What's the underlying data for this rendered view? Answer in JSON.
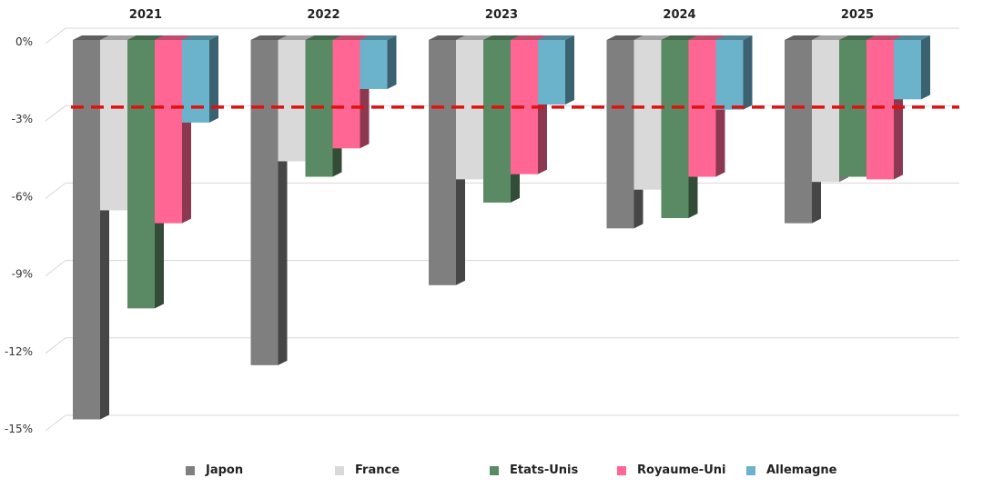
{
  "chart_data": {
    "type": "bar",
    "categories": [
      "2021",
      "2022",
      "2023",
      "2024",
      "2025"
    ],
    "series": [
      {
        "name": "Japon",
        "color": "#7f7f7f",
        "values": [
          -14.7,
          -12.6,
          -9.5,
          -7.3,
          -7.1
        ]
      },
      {
        "name": "France",
        "color": "#d9d9d9",
        "values": [
          -6.6,
          -4.7,
          -5.4,
          -5.8,
          -5.5
        ]
      },
      {
        "name": "Etats-Unis",
        "color": "#5a8a64",
        "values": [
          -10.4,
          -5.3,
          -6.3,
          -6.9,
          -5.3
        ]
      },
      {
        "name": "Royaume-Uni",
        "color": "#ff6693",
        "values": [
          -7.1,
          -4.2,
          -5.2,
          -5.3,
          -5.4
        ]
      },
      {
        "name": "Allemagne",
        "color": "#6bb3cb",
        "values": [
          -3.2,
          -1.9,
          -2.5,
          -2.7,
          -2.3
        ]
      }
    ],
    "reference_line": {
      "value": -2.6,
      "color": "#e01010",
      "style": "dashed"
    },
    "ylim": [
      -15,
      0
    ],
    "yticks": [
      0,
      -3,
      -6,
      -9,
      -12,
      -15
    ],
    "ytick_labels": [
      "0%",
      "-3%",
      "-6%",
      "-9%",
      "-12%",
      "-15%"
    ],
    "grid": true,
    "legend_position": "bottom",
    "category_label_position": "top"
  }
}
